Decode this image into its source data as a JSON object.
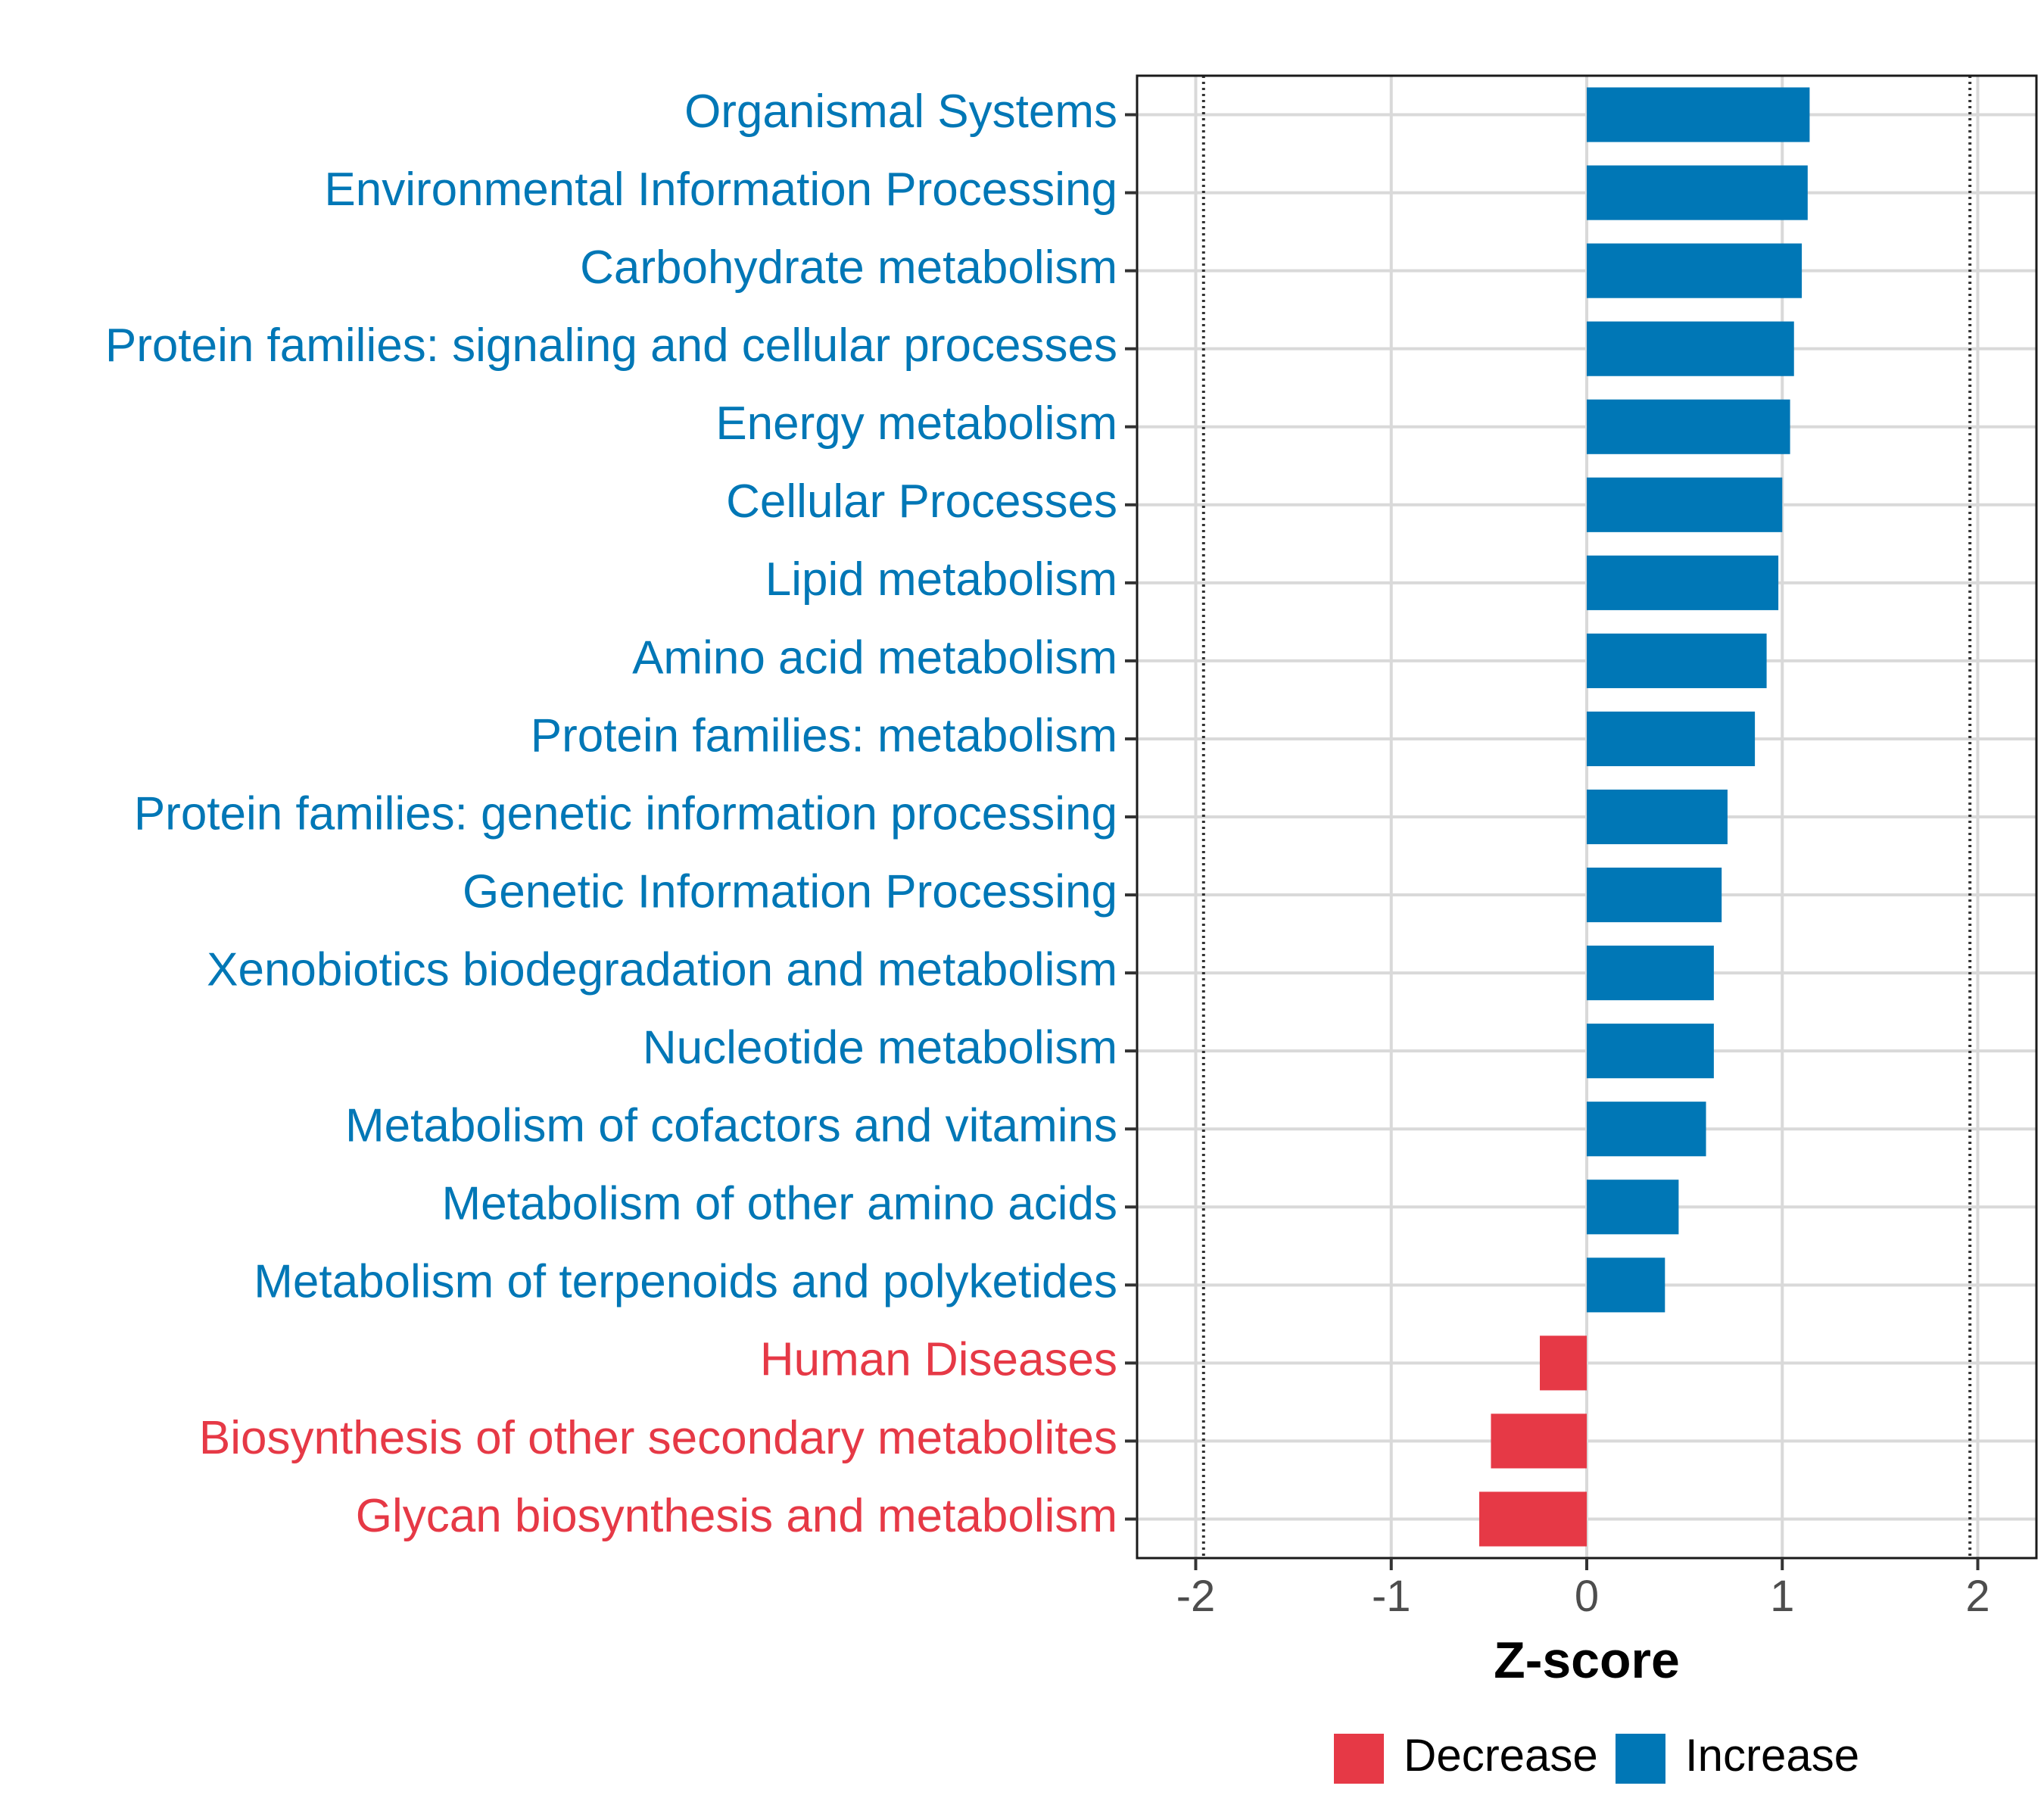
{
  "chart_data": {
    "type": "bar",
    "orientation": "horizontal",
    "xlabel": "Z-score",
    "xlim": [
      -2.3,
      2.3
    ],
    "xticks": [
      -2,
      -1,
      0,
      1,
      2
    ],
    "xtick_labels": [
      "-2",
      "-1",
      "0",
      "1",
      "2"
    ],
    "reference_lines": [
      -1.96,
      1.96
    ],
    "grid": true,
    "legend_position": "bottom",
    "categories": [
      "Organismal Systems",
      "Environmental Information Processing",
      "Carbohydrate metabolism",
      "Protein families: signaling and cellular processes",
      "Energy metabolism",
      "Cellular Processes",
      "Lipid metabolism",
      "Amino acid metabolism",
      "Protein families: metabolism",
      "Protein families: genetic information processing",
      "Genetic Information Processing",
      "Xenobiotics biodegradation and metabolism",
      "Nucleotide metabolism",
      "Metabolism of cofactors and vitamins",
      "Metabolism of other amino acids",
      "Metabolism of terpenoids and polyketides",
      "Human Diseases",
      "Biosynthesis of other secondary metabolites",
      "Glycan biosynthesis and metabolism"
    ],
    "values": [
      1.14,
      1.13,
      1.1,
      1.06,
      1.04,
      1.0,
      0.98,
      0.92,
      0.86,
      0.72,
      0.69,
      0.65,
      0.65,
      0.61,
      0.47,
      0.4,
      -0.24,
      -0.49,
      -0.55
    ],
    "groups": [
      "Increase",
      "Increase",
      "Increase",
      "Increase",
      "Increase",
      "Increase",
      "Increase",
      "Increase",
      "Increase",
      "Increase",
      "Increase",
      "Increase",
      "Increase",
      "Increase",
      "Increase",
      "Increase",
      "Decrease",
      "Decrease",
      "Decrease"
    ],
    "legend": [
      {
        "name": "Decrease",
        "color": "#E63946"
      },
      {
        "name": "Increase",
        "color": "#0077B6"
      }
    ]
  }
}
